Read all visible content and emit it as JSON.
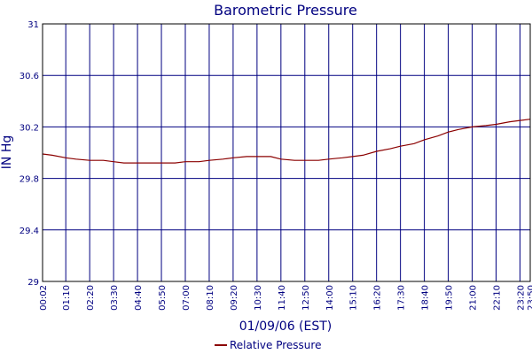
{
  "chart_data": {
    "type": "line",
    "title": "Barometric Pressure",
    "xlabel": "01/09/06 (EST)",
    "ylabel": "IN Hg",
    "ylim": [
      29,
      31
    ],
    "yticks": [
      "29",
      "29.4",
      "29.8",
      "30.2",
      "30.6",
      "31"
    ],
    "xticks": [
      "00:02",
      "01:10",
      "02:20",
      "03:30",
      "04:40",
      "05:50",
      "07:00",
      "08:10",
      "09:20",
      "10:30",
      "11:40",
      "12:50",
      "14:00",
      "15:10",
      "16:20",
      "17:30",
      "18:40",
      "19:50",
      "21:00",
      "22:10",
      "23:20",
      "23:50"
    ],
    "xlim": [
      "00:02",
      "23:50"
    ],
    "grid": true,
    "legend_position": "bottom",
    "colors": {
      "series": "#8b0000",
      "grid": "#000080",
      "text": "#000080"
    },
    "series": [
      {
        "name": "Relative Pressure",
        "x": [
          "00:02",
          "00:30",
          "01:10",
          "01:40",
          "02:20",
          "03:00",
          "03:30",
          "04:00",
          "04:40",
          "05:10",
          "05:50",
          "06:30",
          "07:00",
          "07:40",
          "08:10",
          "08:50",
          "09:20",
          "10:00",
          "10:30",
          "11:10",
          "11:40",
          "12:20",
          "12:50",
          "13:30",
          "14:00",
          "14:40",
          "15:10",
          "15:40",
          "16:20",
          "17:00",
          "17:30",
          "18:10",
          "18:40",
          "19:20",
          "19:50",
          "20:20",
          "21:00",
          "21:40",
          "22:10",
          "22:50",
          "23:20",
          "23:50"
        ],
        "values": [
          29.99,
          29.98,
          29.96,
          29.95,
          29.94,
          29.94,
          29.93,
          29.92,
          29.92,
          29.92,
          29.92,
          29.92,
          29.93,
          29.93,
          29.94,
          29.95,
          29.96,
          29.97,
          29.97,
          29.97,
          29.95,
          29.94,
          29.94,
          29.94,
          29.95,
          29.96,
          29.97,
          29.98,
          30.01,
          30.03,
          30.05,
          30.07,
          30.1,
          30.13,
          30.16,
          30.18,
          30.2,
          30.21,
          30.22,
          30.24,
          30.25,
          30.26
        ]
      }
    ]
  }
}
